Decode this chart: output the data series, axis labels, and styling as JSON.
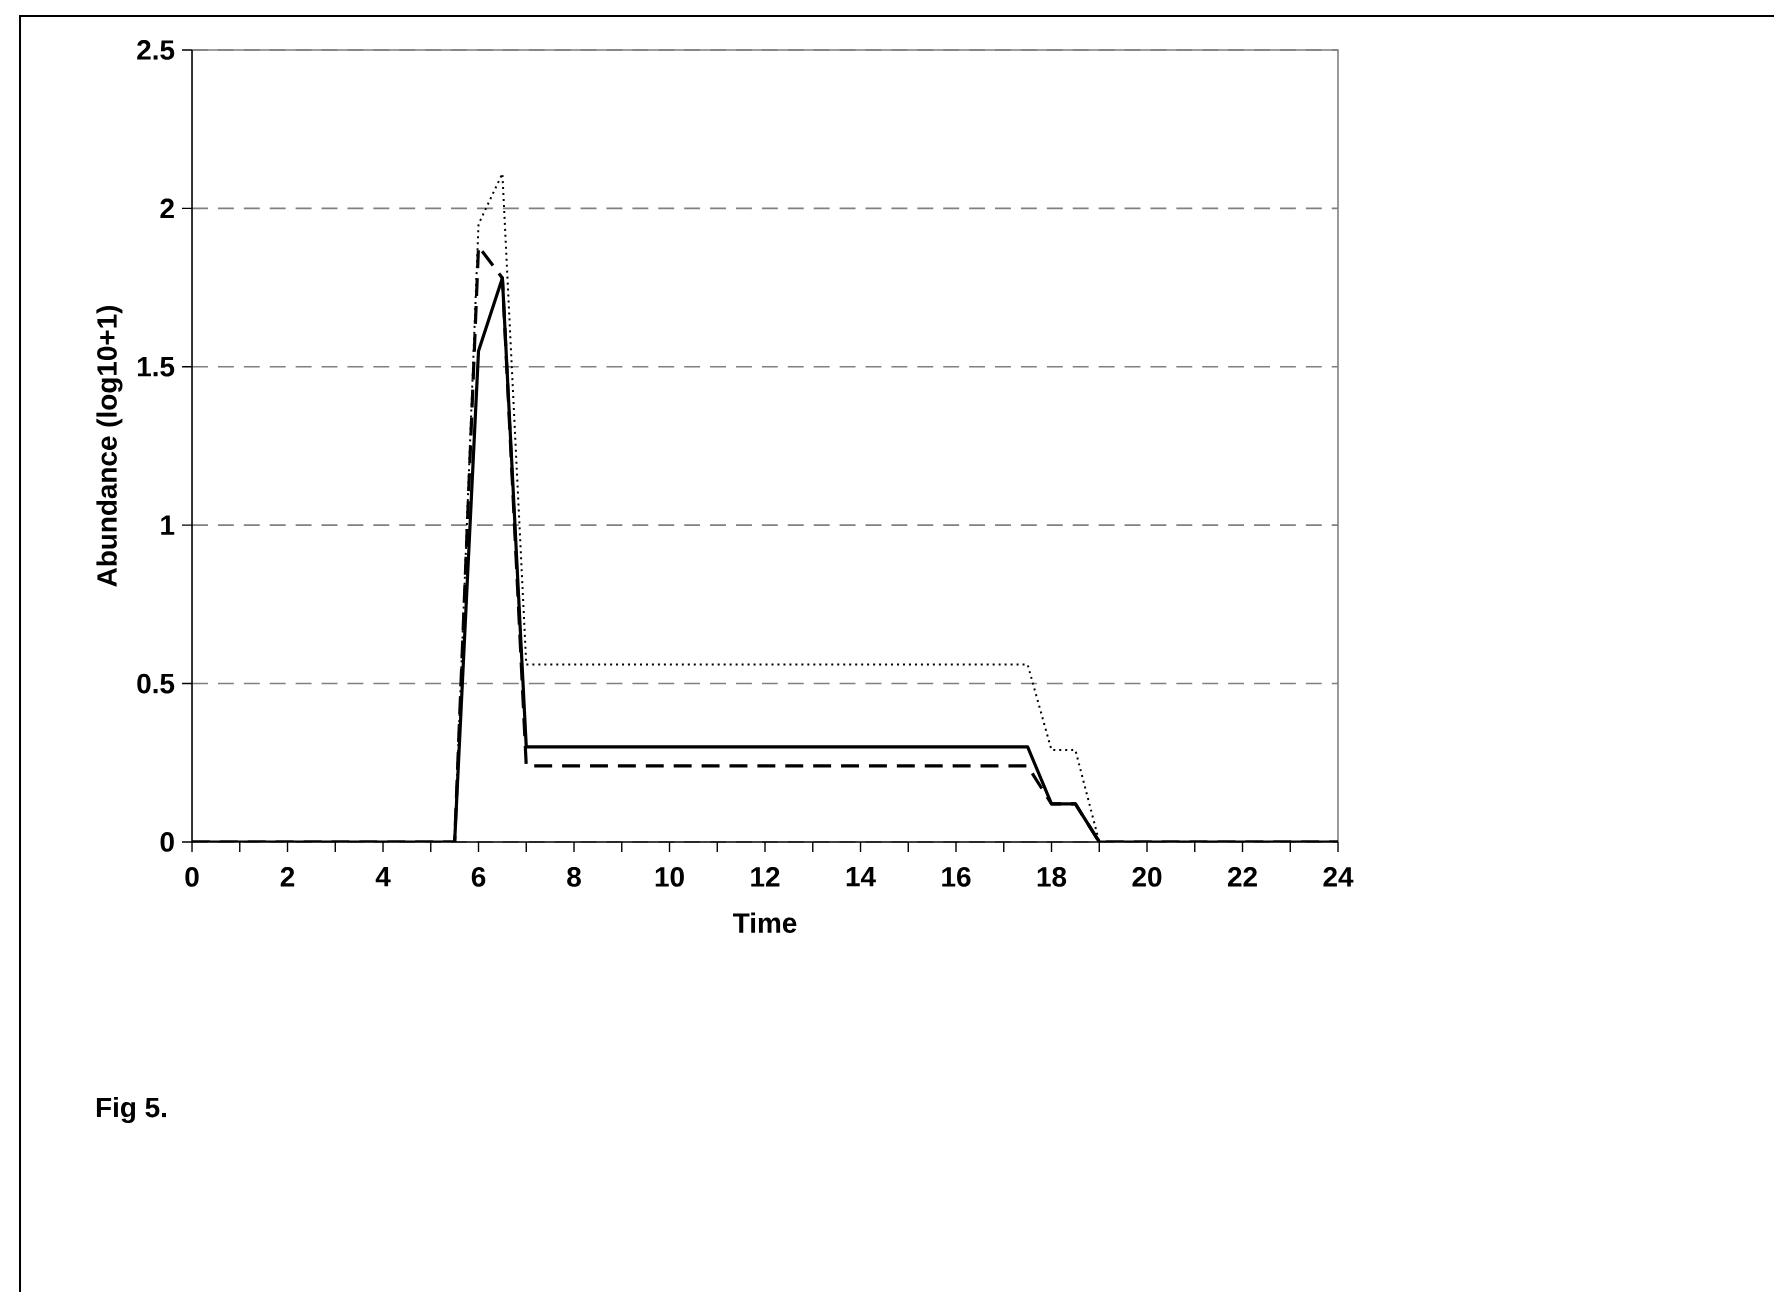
{
  "chart_data": {
    "type": "line",
    "xlabel": "Time",
    "ylabel": "Abundance (log10+1)",
    "annotations": [
      "Fig 5."
    ],
    "xlim": [
      0,
      24
    ],
    "ylim": [
      0,
      2.5
    ],
    "xticks": [
      0,
      {
        "value": 1,
        "label": null
      },
      2,
      {
        "value": 3,
        "label": null
      },
      4,
      {
        "value": 5,
        "label": null
      },
      6,
      {
        "value": 7,
        "label": null
      },
      8,
      {
        "value": 9,
        "label": null
      },
      10,
      {
        "value": 11,
        "label": null
      },
      12,
      {
        "value": 13,
        "label": null
      },
      14,
      {
        "value": 15,
        "label": null
      },
      16,
      {
        "value": 17,
        "label": null
      },
      18,
      {
        "value": 19,
        "label": null
      },
      20,
      {
        "value": 21,
        "label": null
      },
      22,
      {
        "value": 23,
        "label": null
      },
      24
    ],
    "yticks": [
      0,
      0.5,
      1,
      1.5,
      2,
      2.5
    ],
    "grid": "y",
    "marker": "none",
    "x": [
      0,
      5.5,
      6,
      6.5,
      7,
      17.5,
      18,
      18.5,
      19,
      24
    ],
    "series": [
      {
        "color": "#000000",
        "line_style": "solid",
        "values": [
          0,
          0,
          1.55,
          1.78,
          0.3,
          0.3,
          0.12,
          0.12,
          0,
          0
        ]
      },
      {
        "color": "#000000",
        "line_style": "dashed",
        "values": [
          0,
          0,
          1.88,
          1.78,
          0.24,
          0.24,
          0.12,
          0.12,
          0,
          0
        ]
      },
      {
        "color": "#000000",
        "line_style": "dotted",
        "values": [
          0,
          0,
          1.95,
          2.11,
          0.56,
          0.56,
          0.29,
          0.29,
          0,
          0
        ]
      }
    ]
  }
}
